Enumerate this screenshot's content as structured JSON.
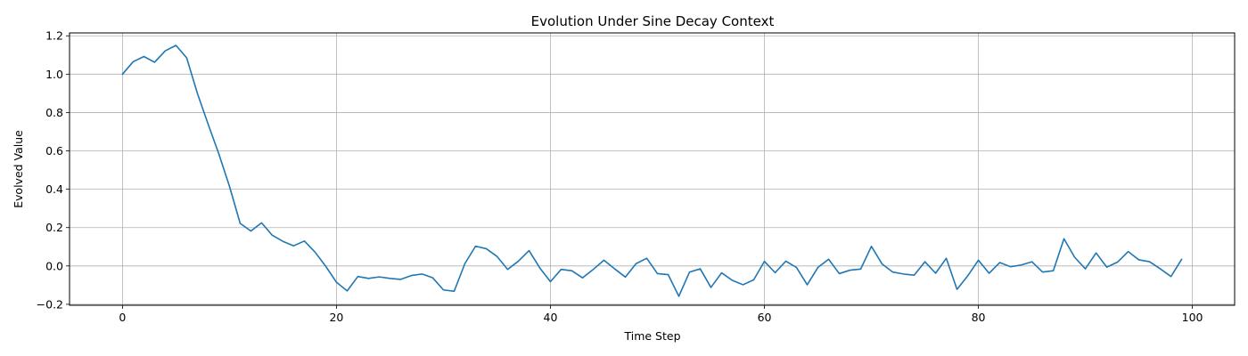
{
  "chart_data": {
    "type": "line",
    "title": "Evolution Under Sine Decay Context",
    "xlabel": "Time Step",
    "ylabel": "Evolved Value",
    "xlim": [
      -4.95,
      103.95
    ],
    "ylim": [
      -0.205,
      1.215
    ],
    "xticks": [
      0,
      20,
      40,
      60,
      80,
      100
    ],
    "xtick_labels": [
      "0",
      "20",
      "40",
      "60",
      "80",
      "100"
    ],
    "yticks": [
      -0.2,
      0.0,
      0.2,
      0.4,
      0.6,
      0.8,
      1.0,
      1.2
    ],
    "ytick_labels": [
      "−0.2",
      "0.0",
      "0.2",
      "0.4",
      "0.6",
      "0.8",
      "1.0",
      "1.2"
    ],
    "grid": true,
    "series": [
      {
        "name": "Evolved Value",
        "color": "#1f77b4",
        "x": [
          0,
          1,
          2,
          3,
          4,
          5,
          6,
          7,
          8,
          9,
          10,
          11,
          12,
          13,
          14,
          15,
          16,
          17,
          18,
          19,
          20,
          21,
          22,
          23,
          24,
          25,
          26,
          27,
          28,
          29,
          30,
          31,
          32,
          33,
          34,
          35,
          36,
          37,
          38,
          39,
          40,
          41,
          42,
          43,
          44,
          45,
          46,
          47,
          48,
          49,
          50,
          51,
          52,
          53,
          54,
          55,
          56,
          57,
          58,
          59,
          60,
          61,
          62,
          63,
          64,
          65,
          66,
          67,
          68,
          69,
          70,
          71,
          72,
          73,
          74,
          75,
          76,
          77,
          78,
          79,
          80,
          81,
          82,
          83,
          84,
          85,
          86,
          87,
          88,
          89,
          90,
          91,
          92,
          93,
          94,
          95,
          96,
          97,
          98,
          99
        ],
        "values": [
          1.0,
          1.065,
          1.092,
          1.062,
          1.122,
          1.15,
          1.085,
          0.9,
          0.74,
          0.585,
          0.415,
          0.222,
          0.182,
          0.225,
          0.16,
          0.128,
          0.105,
          0.13,
          0.072,
          -0.002,
          -0.085,
          -0.13,
          -0.055,
          -0.065,
          -0.057,
          -0.065,
          -0.07,
          -0.05,
          -0.042,
          -0.062,
          -0.125,
          -0.132,
          0.012,
          0.103,
          0.09,
          0.05,
          -0.018,
          0.025,
          0.08,
          -0.01,
          -0.082,
          -0.018,
          -0.025,
          -0.062,
          -0.018,
          0.03,
          -0.015,
          -0.058,
          0.012,
          0.04,
          -0.04,
          -0.045,
          -0.158,
          -0.032,
          -0.015,
          -0.112,
          -0.036,
          -0.075,
          -0.098,
          -0.072,
          0.024,
          -0.035,
          0.025,
          -0.008,
          -0.098,
          -0.008,
          0.035,
          -0.04,
          -0.022,
          -0.016,
          0.102,
          0.01,
          -0.032,
          -0.042,
          -0.048,
          0.022,
          -0.038,
          0.04,
          -0.122,
          -0.052,
          0.03,
          -0.038,
          0.018,
          -0.004,
          0.005,
          0.022,
          -0.032,
          -0.025,
          0.142,
          0.045,
          -0.015,
          0.068,
          -0.006,
          0.02,
          0.075,
          0.032,
          0.022,
          -0.015,
          -0.055,
          0.035
        ]
      }
    ]
  }
}
